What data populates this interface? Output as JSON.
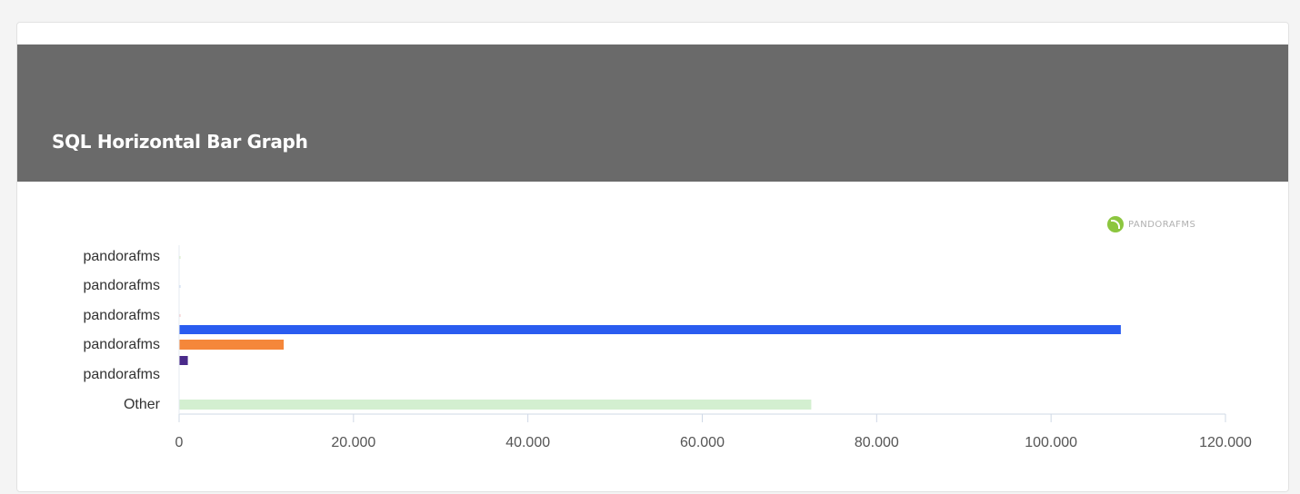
{
  "widget": {
    "title": "SQL Horizontal Bar Graph",
    "logo_text": "PANDORAFMS",
    "logo_icon": "pandorafms-logo-icon"
  },
  "chart_data": {
    "type": "bar",
    "orientation": "horizontal",
    "title": "",
    "xlabel": "",
    "ylabel": "",
    "xlim": [
      0,
      120000
    ],
    "x_ticks": [
      0,
      20000,
      40000,
      60000,
      80000,
      100000,
      120000
    ],
    "x_tick_labels": [
      "0",
      "20.000",
      "40.000",
      "60.000",
      "80.000",
      "100.000",
      "120.000"
    ],
    "categories": [
      "pandorafms",
      "pandorafms",
      "pandorafms",
      "pandorafms",
      "pandorafms",
      "Other"
    ],
    "values": [
      0,
      0,
      0,
      108000,
      12000,
      72500
    ],
    "extra_bar": {
      "value": 1000,
      "color": "#4a2a8a"
    },
    "colors": [
      "#d8edc4",
      "#c9d8f0",
      "#f5c6c6",
      "#2a5cf0",
      "#f5873a",
      "#d3efd0"
    ],
    "grid": false,
    "legend": "none"
  }
}
